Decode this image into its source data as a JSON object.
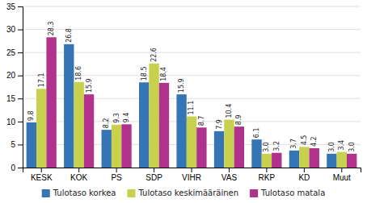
{
  "chart_data": {
    "type": "bar",
    "categories": [
      "KESK",
      "KOK",
      "PS",
      "SDP",
      "VIHR",
      "VAS",
      "RKP",
      "KD",
      "Muut"
    ],
    "series": [
      {
        "name": "Tulotaso korkea",
        "color": "#3575b5",
        "values": [
          9.8,
          26.8,
          8.2,
          18.5,
          15.9,
          7.9,
          6.1,
          3.7,
          3.0
        ],
        "value_labels": [
          "9.8",
          "26.8",
          "8.2",
          "18.5",
          "15.9",
          "7.9",
          "6.1",
          "3.7",
          "3.0"
        ]
      },
      {
        "name": "Tulotaso keskimääräinen",
        "color": "#c8d14e",
        "values": [
          17.1,
          18.6,
          9.3,
          22.6,
          11.1,
          10.4,
          3.0,
          4.5,
          3.4
        ],
        "value_labels": [
          "17.1",
          "18.6",
          "9.3",
          "22.6",
          "11.1",
          "10.4",
          "3.0",
          "4.5",
          "3.4"
        ]
      },
      {
        "name": "Tulotaso matala",
        "color": "#b0328c",
        "values": [
          28.3,
          15.9,
          9.4,
          18.4,
          8.7,
          8.9,
          3.2,
          4.2,
          3.0
        ],
        "value_labels": [
          "28.3",
          "15.9",
          "9.4",
          "18.4",
          "8.7",
          "8.9",
          "3.2",
          "4.2",
          "3.0"
        ]
      }
    ],
    "ylim": [
      0,
      35
    ],
    "yticks": [
      0,
      5,
      10,
      15,
      20,
      25,
      30,
      35
    ],
    "grid": true,
    "legend": "bottom",
    "data_labels": true
  }
}
